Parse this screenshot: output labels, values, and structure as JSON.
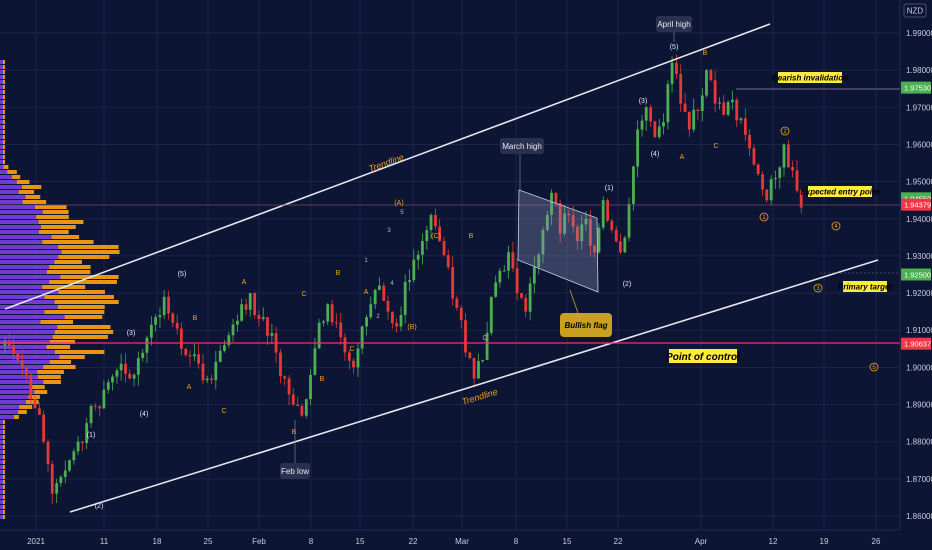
{
  "currency": "NZD",
  "chart_data": {
    "type": "candlestick",
    "title": "",
    "ylabel": "",
    "xlabel": "",
    "ylim": [
      1.855,
      2.0
    ],
    "y_ticks": [
      "1.86000",
      "1.87000",
      "1.88000",
      "1.89000",
      "1.90000",
      "1.91000",
      "1.92000",
      "1.93000",
      "1.94000",
      "1.95000",
      "1.96000",
      "1.97000",
      "1.98000",
      "1.99000"
    ],
    "x_ticks": [
      "2021",
      "11",
      "18",
      "25",
      "Feb",
      "8",
      "15",
      "22",
      "Mar",
      "8",
      "15",
      "22",
      "Apr",
      "12",
      "19",
      "26"
    ],
    "price_levels": [
      {
        "label": "1.97530",
        "value": 1.9753,
        "color": "#4caf50"
      },
      {
        "label": "1.94550",
        "value": 1.9455,
        "color": "#4caf50"
      },
      {
        "label": "1.94379",
        "value": 1.94379,
        "color": "#f23645"
      },
      {
        "label": "1.92500",
        "value": 1.925,
        "color": "#4caf50"
      },
      {
        "label": "1.90637",
        "value": 1.90637,
        "color": "#f23645"
      }
    ],
    "close_series": [
      {
        "x": 0,
        "y": 1.906
      },
      {
        "x": 2,
        "y": 1.898
      },
      {
        "x": 4,
        "y": 1.88
      },
      {
        "x": 5,
        "y": 1.866
      },
      {
        "x": 7,
        "y": 1.875
      },
      {
        "x": 9,
        "y": 1.885
      },
      {
        "x": 11,
        "y": 1.894
      },
      {
        "x": 13,
        "y": 1.901
      },
      {
        "x": 14,
        "y": 1.897
      },
      {
        "x": 16,
        "y": 1.908
      },
      {
        "x": 18,
        "y": 1.919
      },
      {
        "x": 19,
        "y": 1.912
      },
      {
        "x": 20,
        "y": 1.905
      },
      {
        "x": 22,
        "y": 1.901
      },
      {
        "x": 23,
        "y": 1.897
      },
      {
        "x": 25,
        "y": 1.906
      },
      {
        "x": 27,
        "y": 1.917
      },
      {
        "x": 28,
        "y": 1.92
      },
      {
        "x": 29,
        "y": 1.913
      },
      {
        "x": 31,
        "y": 1.904
      },
      {
        "x": 33,
        "y": 1.89
      },
      {
        "x": 34,
        "y": 1.887
      },
      {
        "x": 35,
        "y": 1.898
      },
      {
        "x": 36,
        "y": 1.912
      },
      {
        "x": 37,
        "y": 1.917
      },
      {
        "x": 38,
        "y": 1.912
      },
      {
        "x": 39,
        "y": 1.904
      },
      {
        "x": 40,
        "y": 1.9
      },
      {
        "x": 41,
        "y": 1.911
      },
      {
        "x": 42,
        "y": 1.917
      },
      {
        "x": 43,
        "y": 1.922
      },
      {
        "x": 44,
        "y": 1.915
      },
      {
        "x": 45,
        "y": 1.911
      },
      {
        "x": 46,
        "y": 1.923
      },
      {
        "x": 47,
        "y": 1.929
      },
      {
        "x": 48,
        "y": 1.934
      },
      {
        "x": 49,
        "y": 1.941
      },
      {
        "x": 50,
        "y": 1.934
      },
      {
        "x": 51,
        "y": 1.927
      },
      {
        "x": 52,
        "y": 1.916
      },
      {
        "x": 53,
        "y": 1.904
      },
      {
        "x": 54,
        "y": 1.897
      },
      {
        "x": 55,
        "y": 1.902
      },
      {
        "x": 56,
        "y": 1.919
      },
      {
        "x": 57,
        "y": 1.926
      },
      {
        "x": 58,
        "y": 1.931
      },
      {
        "x": 59,
        "y": 1.92
      },
      {
        "x": 60,
        "y": 1.915
      },
      {
        "x": 61,
        "y": 1.927
      },
      {
        "x": 62,
        "y": 1.937
      },
      {
        "x": 63,
        "y": 1.947
      },
      {
        "x": 64,
        "y": 1.936
      },
      {
        "x": 65,
        "y": 1.941
      },
      {
        "x": 66,
        "y": 1.934
      },
      {
        "x": 67,
        "y": 1.94
      },
      {
        "x": 68,
        "y": 1.931
      },
      {
        "x": 69,
        "y": 1.945
      },
      {
        "x": 70,
        "y": 1.937
      },
      {
        "x": 71,
        "y": 1.931
      },
      {
        "x": 72,
        "y": 1.944
      },
      {
        "x": 73,
        "y": 1.964
      },
      {
        "x": 74,
        "y": 1.97
      },
      {
        "x": 75,
        "y": 1.962
      },
      {
        "x": 76,
        "y": 1.966
      },
      {
        "x": 77,
        "y": 1.982
      },
      {
        "x": 78,
        "y": 1.971
      },
      {
        "x": 79,
        "y": 1.964
      },
      {
        "x": 80,
        "y": 1.969
      },
      {
        "x": 81,
        "y": 1.98
      },
      {
        "x": 82,
        "y": 1.971
      },
      {
        "x": 83,
        "y": 1.968
      },
      {
        "x": 84,
        "y": 1.972
      },
      {
        "x": 85,
        "y": 1.967
      },
      {
        "x": 86,
        "y": 1.959
      },
      {
        "x": 87,
        "y": 1.952
      },
      {
        "x": 88,
        "y": 1.945
      },
      {
        "x": 89,
        "y": 1.951
      },
      {
        "x": 90,
        "y": 1.96
      },
      {
        "x": 91,
        "y": 1.953
      },
      {
        "x": 92,
        "y": 1.943
      }
    ],
    "annotations": [
      "April high",
      "March high",
      "Feb low",
      "Trendline",
      "Trendline",
      "Bearish invalidation",
      "Expected entry point",
      "Primary target",
      "Bullish flag",
      "Point of control"
    ],
    "wave_labels": [
      "(1)",
      "(2)",
      "(3)",
      "(4)",
      "(5)",
      "A",
      "B",
      "C",
      "(A)",
      "(B)",
      "(C)",
      "1",
      "2",
      "3",
      "4",
      "5"
    ]
  },
  "labels": {
    "april_high": "April high",
    "march_high": "March high",
    "feb_low": "Feb low",
    "trendline_upper": "Trendline",
    "trendline_lower": "Trendline",
    "bearish_invalidation": "Bearish invalidation",
    "expected_entry": "Expected entry point",
    "primary_target": "Primary target",
    "bullish_flag": "Bullish flag",
    "point_of_control": "Point of control"
  },
  "colors": {
    "background": "#0d1535",
    "candle_up": "#4caf50",
    "candle_down": "#e53935",
    "profile_purple": "#7b3fe4",
    "profile_orange": "#f39c12",
    "poc_line": "#ff2a6d",
    "trendline": "#e6e6ee",
    "wave_label": "#f0a020",
    "callout_yellow": "#ffeb3b"
  }
}
